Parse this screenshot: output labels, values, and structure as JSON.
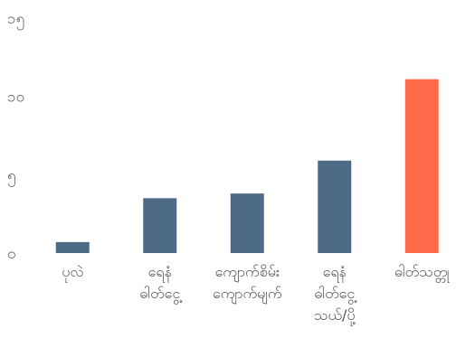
{
  "chart_data": {
    "type": "bar",
    "title": "",
    "xlabel": "",
    "ylabel": "",
    "ylim": [
      0,
      15
    ],
    "y_ticks": [
      {
        "value": 0,
        "label": "၀"
      },
      {
        "value": 5,
        "label": "၅"
      },
      {
        "value": 10,
        "label": "၁၀"
      },
      {
        "value": 15,
        "label": "၁၅"
      }
    ],
    "grid": false,
    "legend": "none",
    "categories": [
      [
        "ပုလဲ"
      ],
      [
        "ရေနံ",
        "ဓါတ်ငွေ့"
      ],
      [
        "ကျောက်စိမ်း",
        "ကျောက်မျက်"
      ],
      [
        "ရေနံ",
        "ဓါတ်ငွေ့",
        "သယ်/ပို့"
      ],
      [
        "ဓါတ်သတ္တု"
      ]
    ],
    "values": [
      0.7,
      3.5,
      3.8,
      5.9,
      11.1
    ],
    "colors": [
      "#4d6b87",
      "#4d6b87",
      "#4d6b87",
      "#4d6b87",
      "#ff6b4a"
    ]
  }
}
